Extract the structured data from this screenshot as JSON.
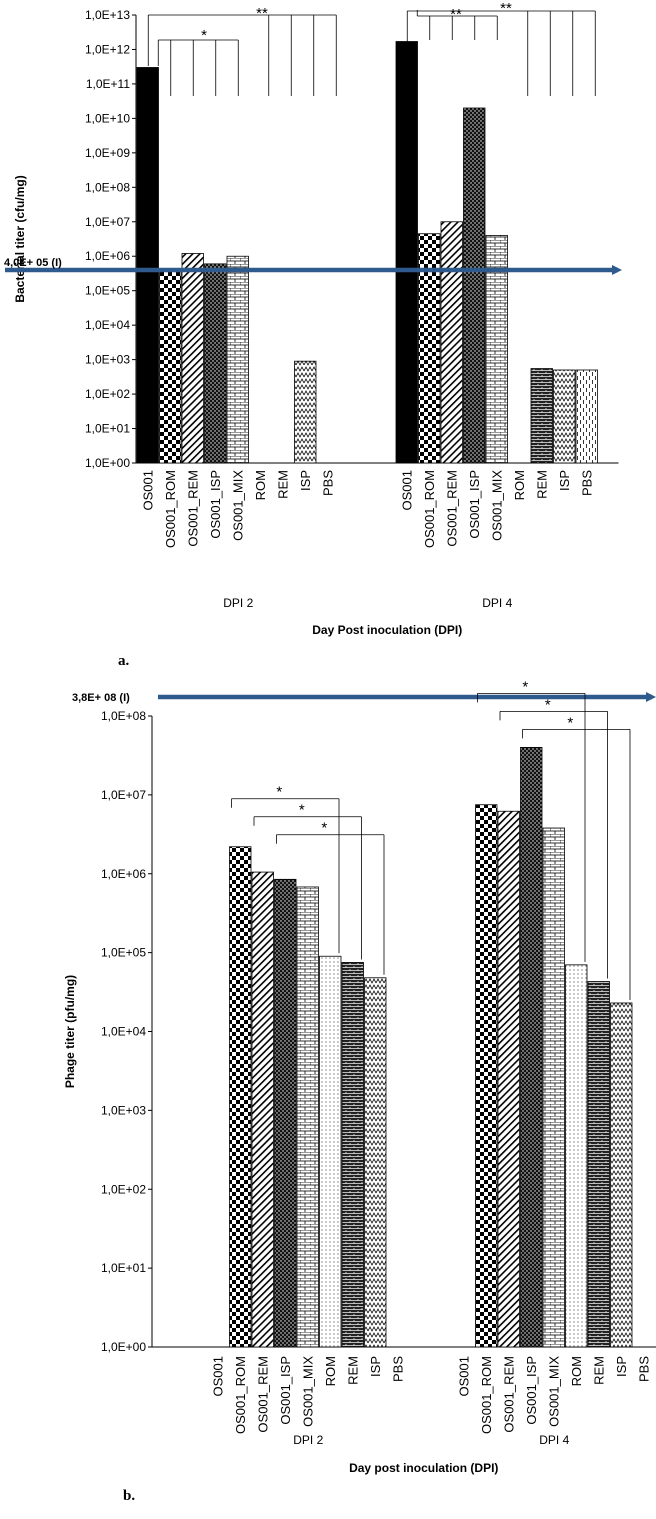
{
  "chart_data": [
    {
      "type": "bar",
      "panel_label": "a.",
      "ylabel": "Bacterial titer (cfu/mg)",
      "xlabel": "Day Post inoculation (DPI)",
      "yscale": "log",
      "ylim": [
        1,
        10000000000000
      ],
      "yticks": [
        "1,0E+00",
        "1,0E+01",
        "1,0E+02",
        "1,0E+03",
        "1,0E+04",
        "1,0E+05",
        "1,0E+06",
        "1,0E+07",
        "1,0E+08",
        "1,0E+09",
        "1,0E+10",
        "1,0E+11",
        "1,0E+12",
        "1,0E+13"
      ],
      "categories": [
        "OS001",
        "OS001_ROM",
        "OS001_REM",
        "OS001_ISP",
        "OS001_MIX",
        "ROM",
        "REM",
        "ISP",
        "PBS"
      ],
      "groups": [
        {
          "name": "DPI 2",
          "values": [
            300000000000,
            400000,
            1200000,
            600000,
            1000000,
            null,
            null,
            900,
            null
          ]
        },
        {
          "name": "DPI 4",
          "values": [
            1700000000000,
            4500000,
            10000000,
            20000000000,
            4000000,
            null,
            550,
            500,
            500
          ]
        }
      ],
      "reference_line": {
        "label": "4,0E+ 05 (I)",
        "value": 400000
      },
      "significance": [
        {
          "group": "DPI 2",
          "label": "*",
          "from": "OS001",
          "to": [
            "OS001_ROM",
            "OS001_REM",
            "OS001_ISP",
            "OS001_MIX"
          ]
        },
        {
          "group": "DPI 2",
          "label": "**",
          "from": "OS001",
          "to": [
            "ROM",
            "REM",
            "ISP",
            "PBS"
          ]
        },
        {
          "group": "DPI 4",
          "label": "**",
          "from": "OS001",
          "to": [
            "OS001_ROM",
            "OS001_REM",
            "OS001_ISP",
            "OS001_MIX"
          ]
        },
        {
          "group": "DPI 4",
          "label": "**",
          "from": "OS001",
          "to": [
            "ROM",
            "REM",
            "ISP",
            "PBS"
          ]
        }
      ]
    },
    {
      "type": "bar",
      "panel_label": "b.",
      "ylabel": "Phage titer (pfu/mg)",
      "xlabel": "Day post inoculation (DPI)",
      "yscale": "log",
      "ylim": [
        1,
        100000000
      ],
      "yticks": [
        "1,0E+00",
        "1,0E+01",
        "1,0E+02",
        "1,0E+03",
        "1,0E+04",
        "1,0E+05",
        "1,0E+06",
        "1,0E+07",
        "1,0E+08"
      ],
      "categories": [
        "OS001",
        "OS001_ROM",
        "OS001_REM",
        "OS001_ISP",
        "OS001_MIX",
        "ROM",
        "REM",
        "ISP",
        "PBS"
      ],
      "groups": [
        {
          "name": "DPI 2",
          "values": [
            null,
            2200000,
            1050000,
            850000,
            680000,
            90000,
            75000,
            48000,
            null
          ]
        },
        {
          "name": "DPI 4",
          "values": [
            null,
            7500000,
            6200000,
            40000000,
            3800000,
            70000,
            43000,
            23000,
            null
          ]
        }
      ],
      "reference_line": {
        "label": "3,8E+ 08 (I)",
        "value": 380000000
      },
      "significance": [
        {
          "group": "DPI 2",
          "label": "*",
          "from": "OS001_ROM",
          "to": "ROM"
        },
        {
          "group": "DPI 2",
          "label": "*",
          "from": "OS001_REM",
          "to": "REM"
        },
        {
          "group": "DPI 2",
          "label": "*",
          "from": "OS001_ISP",
          "to": "ISP"
        },
        {
          "group": "DPI 4",
          "label": "*",
          "from": "OS001_ROM",
          "to": "ROM"
        },
        {
          "group": "DPI 4",
          "label": "*",
          "from": "OS001_REM",
          "to": "REM"
        },
        {
          "group": "DPI 4",
          "label": "*",
          "from": "OS001_ISP",
          "to": "ISP"
        }
      ]
    }
  ],
  "colors": {
    "bar_fill": "#000000",
    "arrow": "#2e5a8e",
    "axis": "#000000"
  },
  "patterns": {
    "OS001": "solid-black",
    "OS001_ROM": "checkerboard",
    "OS001_REM": "diagonal-stripes",
    "OS001_ISP": "dark-dotted",
    "OS001_MIX": "brick",
    "ROM": "fine-dots",
    "REM": "dark-brick",
    "ISP": "zigzag",
    "PBS": "dashed-vertical"
  }
}
